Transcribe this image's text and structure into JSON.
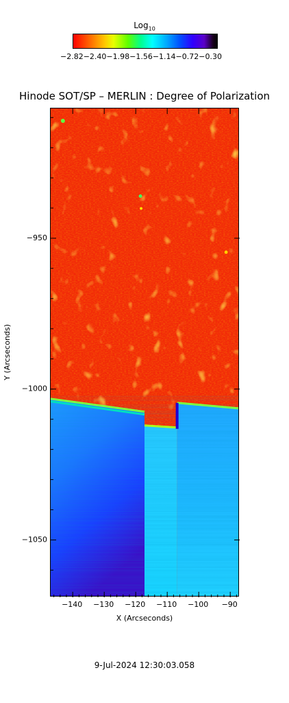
{
  "chart_data": {
    "type": "heatmap",
    "title": "Hinode SOT/SP – MERLIN : Degree of Polarization",
    "xlabel": "X (Arcseconds)",
    "ylabel": "Y (Arcseconds)",
    "xlim": [
      -147,
      -87
    ],
    "ylim": [
      -1069,
      -907
    ],
    "x_ticks": [
      -140,
      -130,
      -120,
      -110,
      -100,
      -90
    ],
    "y_ticks": [
      -950,
      -1000,
      -1050
    ],
    "colorbar": {
      "label_main": "Log",
      "label_sub": "10",
      "scale": "log10",
      "ticks_text": "−2.82−2.40−1.98−1.56−1.14−0.72−0.30",
      "range": [
        -2.82,
        -0.3
      ],
      "colors": [
        "#ff0000",
        "#ffc800",
        "#5fff00",
        "#00ffff",
        "#0050ff",
        "#5a00c8",
        "#000000"
      ]
    },
    "regions": [
      {
        "x": [
          -147,
          -117
        ],
        "y_boundary": [
          -1002,
          -1007
        ],
        "above": -2.7,
        "below": -1.0
      },
      {
        "x": [
          -117,
          -107
        ],
        "y_boundary": [
          -1010,
          -1011
        ],
        "above": -2.7,
        "below": -1.2
      },
      {
        "x": [
          -107,
          -87
        ],
        "y_boundary": [
          -1004,
          -1006
        ],
        "above": -2.7,
        "below": -1.2
      }
    ]
  },
  "timestamp": "9-Jul-2024 12:30:03.058"
}
